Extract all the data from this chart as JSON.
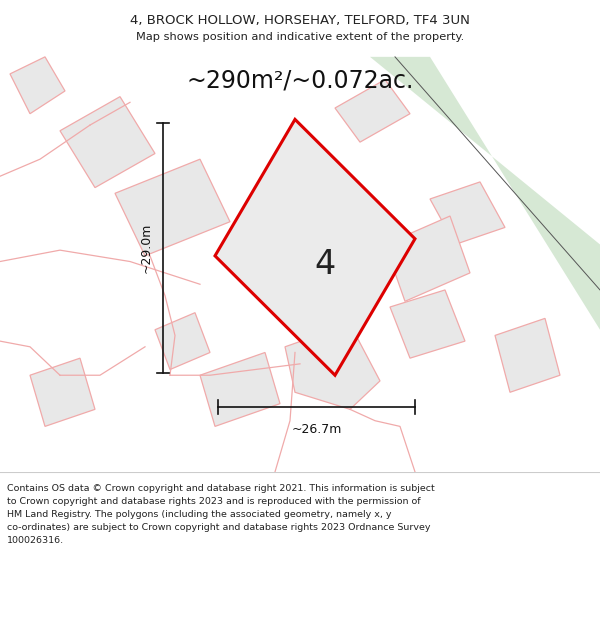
{
  "title_line1": "4, BROCK HOLLOW, HORSEHAY, TELFORD, TF4 3UN",
  "title_line2": "Map shows position and indicative extent of the property.",
  "area_label": "~290m²/~0.072ac.",
  "number_label": "4",
  "dim_width": "~26.7m",
  "dim_height": "~29.0m",
  "footer_text": "Contains OS data © Crown copyright and database right 2021. This information is subject\nto Crown copyright and database rights 2023 and is reproduced with the permission of\nHM Land Registry. The polygons (including the associated geometry, namely x, y\nco-ordinates) are subject to Crown copyright and database rights 2023 Ordnance Survey\n100026316.",
  "bg_color": "#ffffff",
  "map_bg": "#ffffff",
  "plot_fill": "#ebebeb",
  "plot_stroke": "#dd0000",
  "road_fill": "#d6e8d4",
  "road_stroke": "#999999",
  "neighbor_fill": "#e8e8e8",
  "neighbor_stroke": "#f0aaaa",
  "dim_color": "#111111",
  "title_color": "#222222",
  "footer_color": "#222222",
  "sep_color": "#cccccc"
}
